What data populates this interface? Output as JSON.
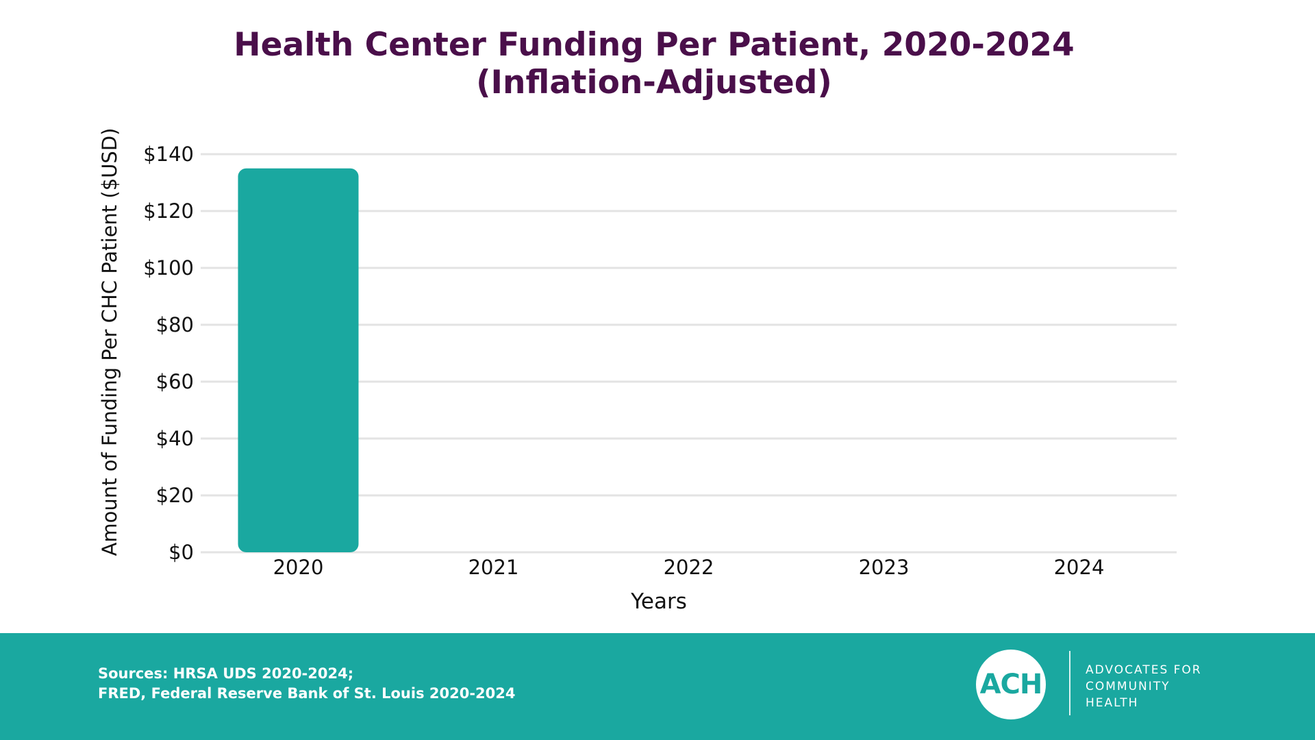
{
  "header": {
    "title_line1": "Health Center Funding Per Patient, 2020-2024",
    "title_line2": "(Inflation-Adjusted)"
  },
  "chart_data": {
    "type": "bar",
    "categories": [
      "2020",
      "2021",
      "2022",
      "2023",
      "2024"
    ],
    "values": [
      135,
      null,
      null,
      null,
      null
    ],
    "xlabel": "Years",
    "ylabel": "Amount of Funding Per CHC Patient ($USD)",
    "ylim": [
      0,
      140
    ],
    "yticks": [
      0,
      20,
      40,
      60,
      80,
      100,
      120,
      140
    ],
    "ytick_labels": [
      "$0",
      "$20",
      "$40",
      "$60",
      "$80",
      "$100",
      "$120",
      "$140"
    ],
    "grid": true,
    "bar_color": "#1aa8a0",
    "gridline_color": "#e3e3e3"
  },
  "footer": {
    "background_color": "#1aa8a0",
    "sources_line1": "Sources: HRSA UDS 2020-2024;",
    "sources_line2": "FRED, Federal Reserve Bank of St. Louis 2020-2024",
    "logo_mark": "ACH",
    "logo_line1": "ADVOCATES FOR",
    "logo_line2": "COMMUNITY",
    "logo_line3": "HEALTH"
  }
}
